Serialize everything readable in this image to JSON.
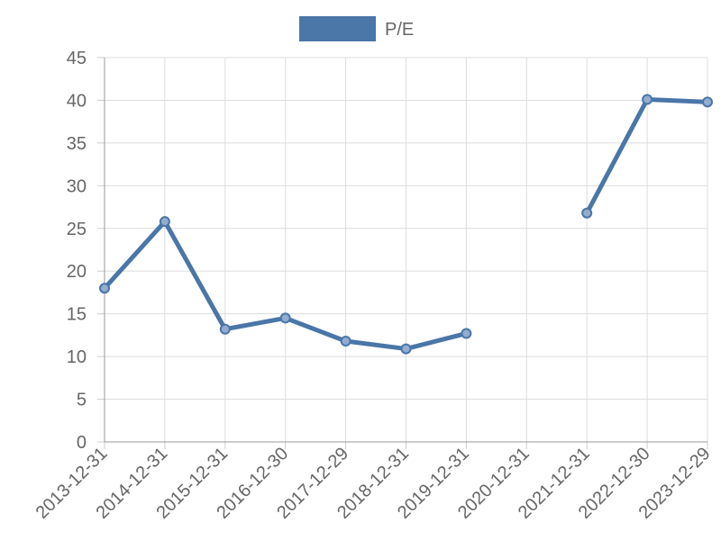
{
  "chart_data": {
    "type": "line",
    "categories": [
      "2013-12-31",
      "2014-12-31",
      "2015-12-31",
      "2016-12-30",
      "2017-12-29",
      "2018-12-31",
      "2019-12-31",
      "2020-12-31",
      "2021-12-31",
      "2022-12-30",
      "2023-12-29"
    ],
    "series": [
      {
        "name": "P/E",
        "color": "#4a76a8",
        "values": [
          18.0,
          25.8,
          13.2,
          14.5,
          11.8,
          10.9,
          12.7,
          null,
          26.8,
          40.1,
          39.8
        ]
      }
    ],
    "ylim": [
      0,
      45
    ],
    "yticks": [
      0,
      5,
      10,
      15,
      20,
      25,
      30,
      35,
      40,
      45
    ],
    "grid": true,
    "legend": "top"
  }
}
